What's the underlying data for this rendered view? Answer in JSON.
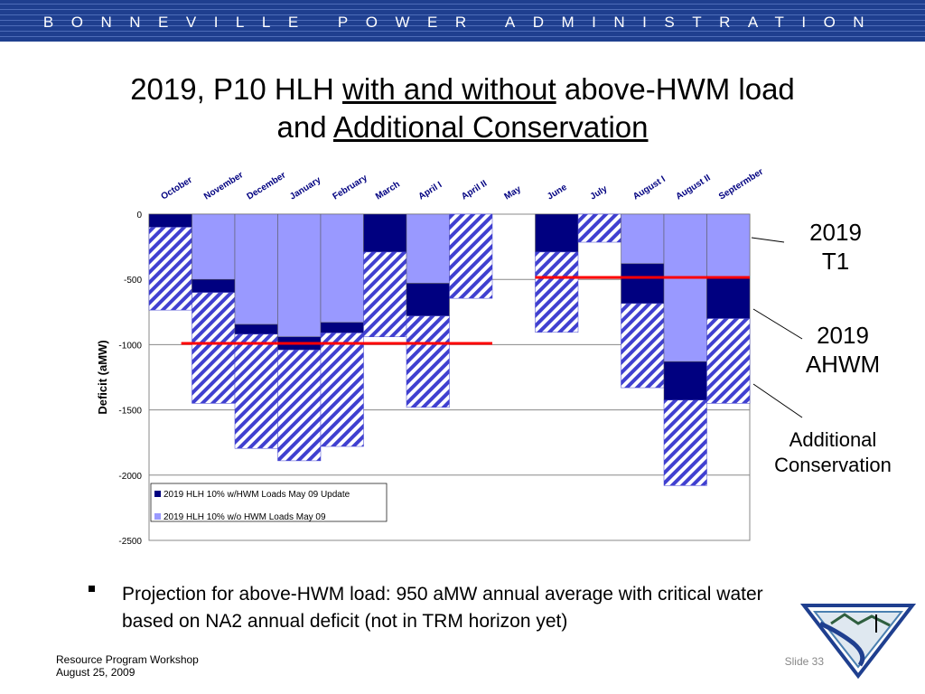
{
  "header": {
    "text": "BONNEVILLE POWER ADMINISTRATION"
  },
  "chart_data": {
    "type": "bar",
    "stacked": true,
    "title": {
      "lines": [
        [
          "2019, P10 HLH",
          "with and without",
          "above-HWM load"
        ],
        [
          "and",
          "Additional Conservation"
        ]
      ],
      "underlined": [
        [
          false,
          true,
          false
        ],
        [
          false,
          true
        ]
      ]
    },
    "y_label": "Deficit (aMW)",
    "categories": [
      "October",
      "November",
      "December",
      "January",
      "February",
      "March",
      "April I",
      "April II",
      "May",
      "June",
      "July",
      "August I",
      "August II",
      "Septermber"
    ],
    "series": [
      {
        "name": "2019 HLH 10% w/o HWM Loads May 09",
        "color": "#9999ff",
        "values": [
          0,
          -500,
          -845,
          -940,
          -830,
          0,
          -530,
          0,
          0,
          0,
          0,
          -380,
          -1130,
          -490
        ]
      },
      {
        "name": "2019 HLH 10% w/HWM Loads May 09 Update",
        "color": "#000080",
        "values": [
          -100,
          -100,
          -75,
          -100,
          -80,
          -290,
          -250,
          0,
          0,
          -290,
          0,
          -305,
          -295,
          -310
        ]
      },
      {
        "color": "#4040d0",
        "pattern": "hatch",
        "values": [
          -635,
          -850,
          -875,
          -850,
          -870,
          -650,
          -700,
          -645,
          0,
          -615,
          -215,
          -645,
          -655,
          -650
        ]
      }
    ],
    "reference_lines": [
      {
        "value": -990,
        "color": "#ff0000"
      },
      {
        "value": -485,
        "color": "#ff0000"
      }
    ],
    "ylim": [
      -2500,
      0
    ],
    "yticks": [
      0,
      -500,
      -1000,
      -1500,
      -2000,
      -2500
    ],
    "grid": true,
    "legend": "lower left",
    "annotations": [
      {
        "lines": [
          "2019",
          "T1"
        ]
      },
      {
        "lines": [
          "2019",
          "AHWM"
        ]
      },
      {
        "lines": [
          "Additional",
          "Conservation"
        ]
      }
    ]
  },
  "bullets": [
    "Projection for above-HWM load: 950 aMW annual average with critical water based on NA2 annual deficit (not in TRM horizon yet)"
  ],
  "footer": {
    "lines": [
      "Resource Program Workshop",
      "August 25, 2009"
    ],
    "slide": "Slide 33"
  }
}
